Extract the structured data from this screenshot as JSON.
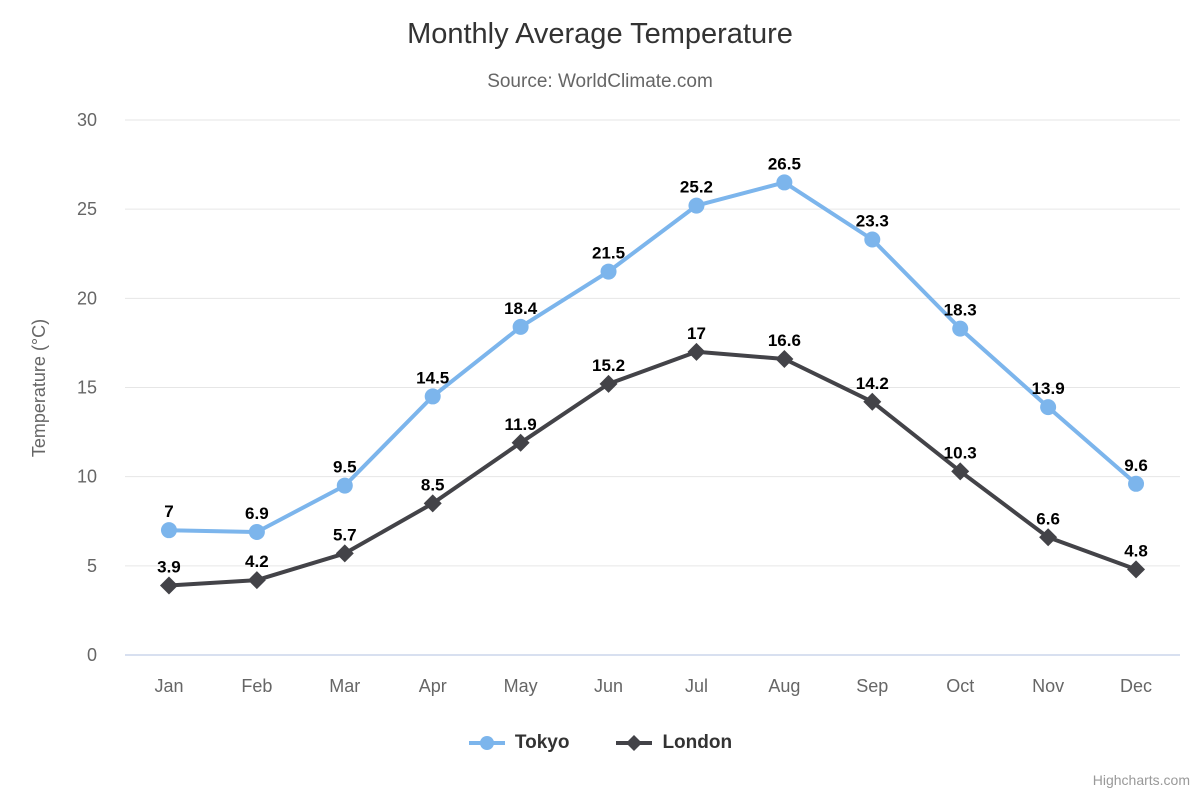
{
  "chart": {
    "title": "Monthly Average Temperature",
    "subtitle": "Source: WorldClimate.com",
    "credit": "Highcharts.com"
  },
  "chart_data": {
    "type": "line",
    "title": "Monthly Average Temperature",
    "subtitle": "Source: WorldClimate.com",
    "categories": [
      "Jan",
      "Feb",
      "Mar",
      "Apr",
      "May",
      "Jun",
      "Jul",
      "Aug",
      "Sep",
      "Oct",
      "Nov",
      "Dec"
    ],
    "series": [
      {
        "name": "Tokyo",
        "marker": "circle",
        "color": "#7cb5ec",
        "values": [
          7,
          6.9,
          9.5,
          14.5,
          18.4,
          21.5,
          25.2,
          26.5,
          23.3,
          18.3,
          13.9,
          9.6
        ]
      },
      {
        "name": "London",
        "marker": "diamond",
        "color": "#434348",
        "values": [
          3.9,
          4.2,
          5.7,
          8.5,
          11.9,
          15.2,
          17,
          16.6,
          14.2,
          10.3,
          6.6,
          4.8
        ]
      }
    ],
    "xlabel": "",
    "ylabel": "Temperature (°C)",
    "ylim": [
      0,
      30
    ],
    "ytick_interval": 5,
    "ytick_labels": [
      "0",
      "5",
      "10",
      "15",
      "20",
      "25",
      "30"
    ],
    "grid": true,
    "data_labels": true,
    "legend_position": "bottom",
    "colors": {
      "grid_line": "#e6e6e6",
      "axis_line": "#ccd6eb",
      "tick_label": "#666666",
      "axis_title": "#666666",
      "data_label": "#000000",
      "title": "#333333",
      "subtitle": "#666666",
      "credit": "#999999"
    }
  }
}
